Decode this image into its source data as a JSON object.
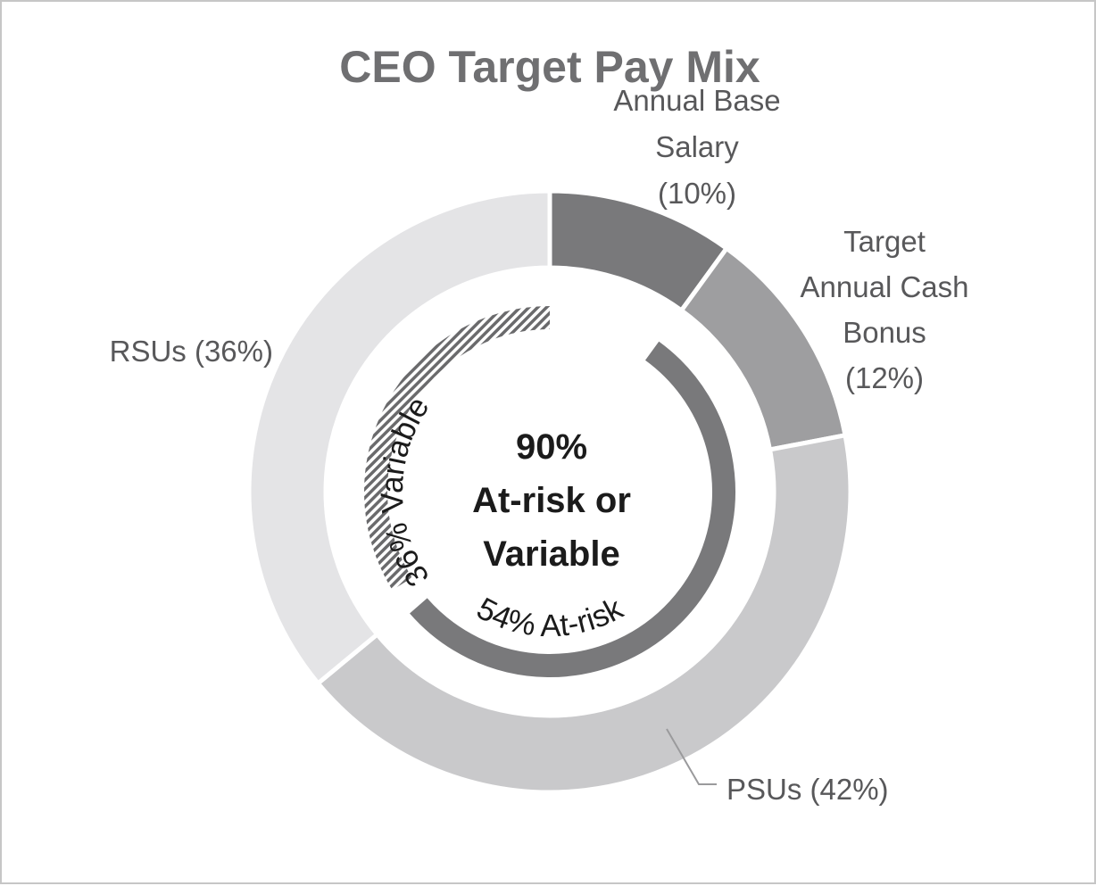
{
  "chart_data": {
    "type": "pie",
    "title": "CEO Target Pay Mix",
    "categories": [
      "Annual Base Salary",
      "Target Annual Cash Bonus",
      "PSUs",
      "RSUs"
    ],
    "values": [
      10,
      12,
      42,
      36
    ],
    "unit": "%",
    "colors": [
      "#79797b",
      "#9e9ea0",
      "#c9c9cb",
      "#e4e4e6"
    ],
    "segment_labels": [
      [
        "Annual Base",
        "Salary",
        "(10%)"
      ],
      [
        "Target",
        "Annual Cash",
        "Bonus",
        "(12%)"
      ],
      [
        "PSUs (42%)"
      ],
      [
        "RSUs (36%)"
      ]
    ],
    "inner_arcs": [
      {
        "label": "54% At-risk",
        "value": 54,
        "color": "#79797b",
        "pattern": "solid"
      },
      {
        "label": "36% Variable",
        "value": 36,
        "color": "#6a6a6c",
        "pattern": "hatched"
      }
    ],
    "center_label": [
      "90%",
      "At-risk or",
      "Variable"
    ]
  }
}
